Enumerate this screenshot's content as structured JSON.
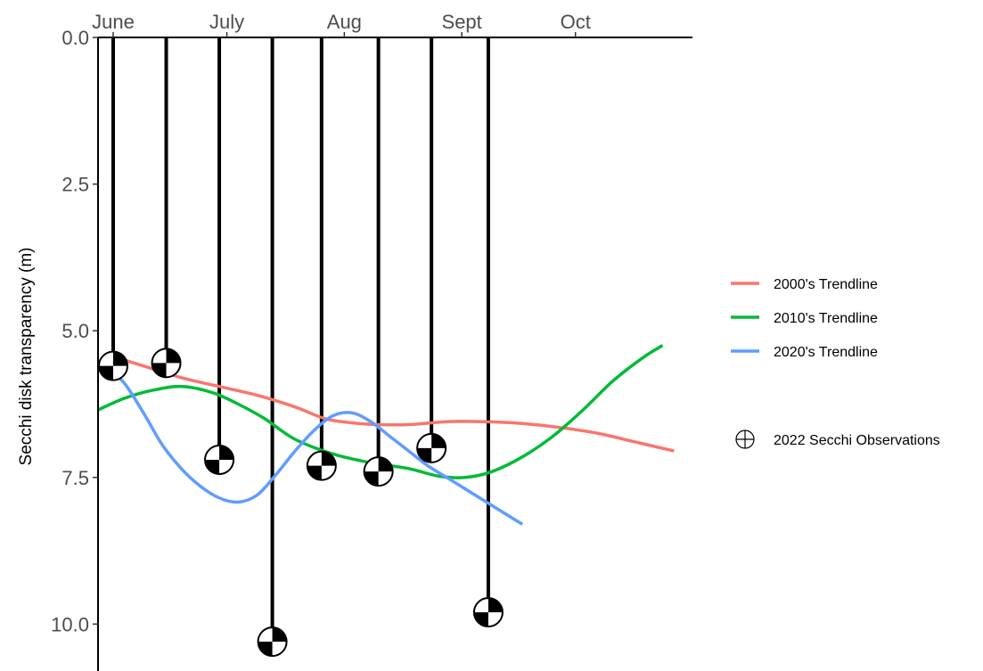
{
  "chart_data": {
    "type": "line",
    "title": "",
    "xlabel": "",
    "ylabel": "Secchi disk transparency (m)",
    "x_axis_position": "top",
    "x_ticks": [
      {
        "label": "June",
        "doy": 152
      },
      {
        "label": "July",
        "doy": 182
      },
      {
        "label": "Aug",
        "doy": 213
      },
      {
        "label": "Sept",
        "doy": 244
      },
      {
        "label": "Oct",
        "doy": 274
      }
    ],
    "x_range_doy": [
      148,
      299
    ],
    "y_ticks": [
      0.0,
      2.5,
      5.0,
      7.5,
      10.0
    ],
    "y_tick_labels": [
      "0.0",
      "2.5",
      "5.0",
      "7.5",
      "10.0"
    ],
    "ylim": [
      0,
      10.8
    ],
    "y_reversed": true,
    "grid": false,
    "legend_position": "right",
    "series": [
      {
        "name": "2000's Trendline",
        "color": "#F8766D",
        "x_doy": [
          150,
          160,
          170,
          180,
          190,
          200,
          208,
          215,
          222,
          230,
          240,
          250,
          260,
          270,
          280,
          290,
          300
        ],
        "y": [
          5.4,
          5.6,
          5.8,
          5.95,
          6.1,
          6.3,
          6.5,
          6.57,
          6.6,
          6.6,
          6.55,
          6.55,
          6.58,
          6.65,
          6.75,
          6.9,
          7.05
        ]
      },
      {
        "name": "2010's Trendline",
        "color": "#00BA38",
        "x_doy": [
          148,
          155,
          162,
          170,
          178,
          185,
          192,
          200,
          210,
          220,
          230,
          238,
          245,
          252,
          260,
          268,
          276,
          284,
          292,
          297
        ],
        "y": [
          6.35,
          6.15,
          6.02,
          5.95,
          6.05,
          6.25,
          6.5,
          6.85,
          7.1,
          7.25,
          7.35,
          7.48,
          7.5,
          7.4,
          7.15,
          6.8,
          6.35,
          5.85,
          5.45,
          5.25
        ]
      },
      {
        "name": "2020's Trendline",
        "color": "#619CFF",
        "x_doy": [
          150,
          155,
          160,
          165,
          170,
          175,
          180,
          185,
          190,
          195,
          200,
          205,
          210,
          215,
          220,
          225,
          230,
          235,
          240,
          245,
          250,
          255,
          260
        ],
        "y": [
          5.6,
          5.9,
          6.4,
          6.95,
          7.35,
          7.65,
          7.85,
          7.92,
          7.8,
          7.45,
          7.05,
          6.7,
          6.45,
          6.4,
          6.55,
          6.8,
          7.05,
          7.3,
          7.5,
          7.7,
          7.9,
          8.1,
          8.3
        ]
      }
    ],
    "observations": {
      "name": "2022 Secchi Observations",
      "points": [
        {
          "x_doy": 152,
          "y": 5.6
        },
        {
          "x_doy": 166,
          "y": 5.55
        },
        {
          "x_doy": 180,
          "y": 7.2
        },
        {
          "x_doy": 194,
          "y": 10.3
        },
        {
          "x_doy": 207,
          "y": 7.3
        },
        {
          "x_doy": 222,
          "y": 7.4
        },
        {
          "x_doy": 236,
          "y": 7.0
        },
        {
          "x_doy": 251,
          "y": 9.8
        }
      ]
    }
  }
}
